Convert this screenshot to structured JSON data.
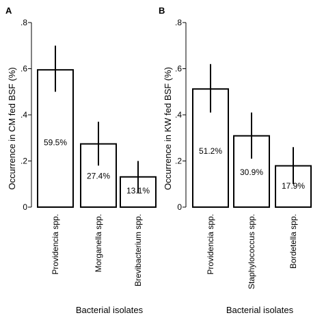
{
  "chart_data": [
    {
      "panel": "A",
      "type": "bar",
      "categories": [
        "Providencia spp.",
        "Morganella spp.",
        "Brevibacterium spp."
      ],
      "values": [
        0.595,
        0.274,
        0.131
      ],
      "error_low": [
        0.5,
        0.18,
        0.06
      ],
      "error_high": [
        0.7,
        0.37,
        0.2
      ],
      "data_labels": [
        "59.5%",
        "27.4%",
        "13.1%"
      ],
      "yticks": [
        "0",
        ".2",
        ".4",
        ".6",
        ".8"
      ],
      "ylim": [
        0,
        0.8
      ],
      "xlabel": "Bacterial isolates",
      "ylabel": "Occurrence in CM fed BSF (%)"
    },
    {
      "panel": "B",
      "type": "bar",
      "categories": [
        "Providencia spp.",
        "Staphylococcus spp.",
        "Bordetella spp."
      ],
      "values": [
        0.512,
        0.309,
        0.179
      ],
      "error_low": [
        0.41,
        0.21,
        0.1
      ],
      "error_high": [
        0.62,
        0.41,
        0.26
      ],
      "data_labels": [
        "51.2%",
        "30.9%",
        "17.9%"
      ],
      "yticks": [
        "0",
        ".2",
        ".4",
        ".6",
        ".8"
      ],
      "ylim": [
        0,
        0.8
      ],
      "xlabel": "Bacterial isolates",
      "ylabel": "Occurrence in KW fed BSF (%)"
    }
  ]
}
